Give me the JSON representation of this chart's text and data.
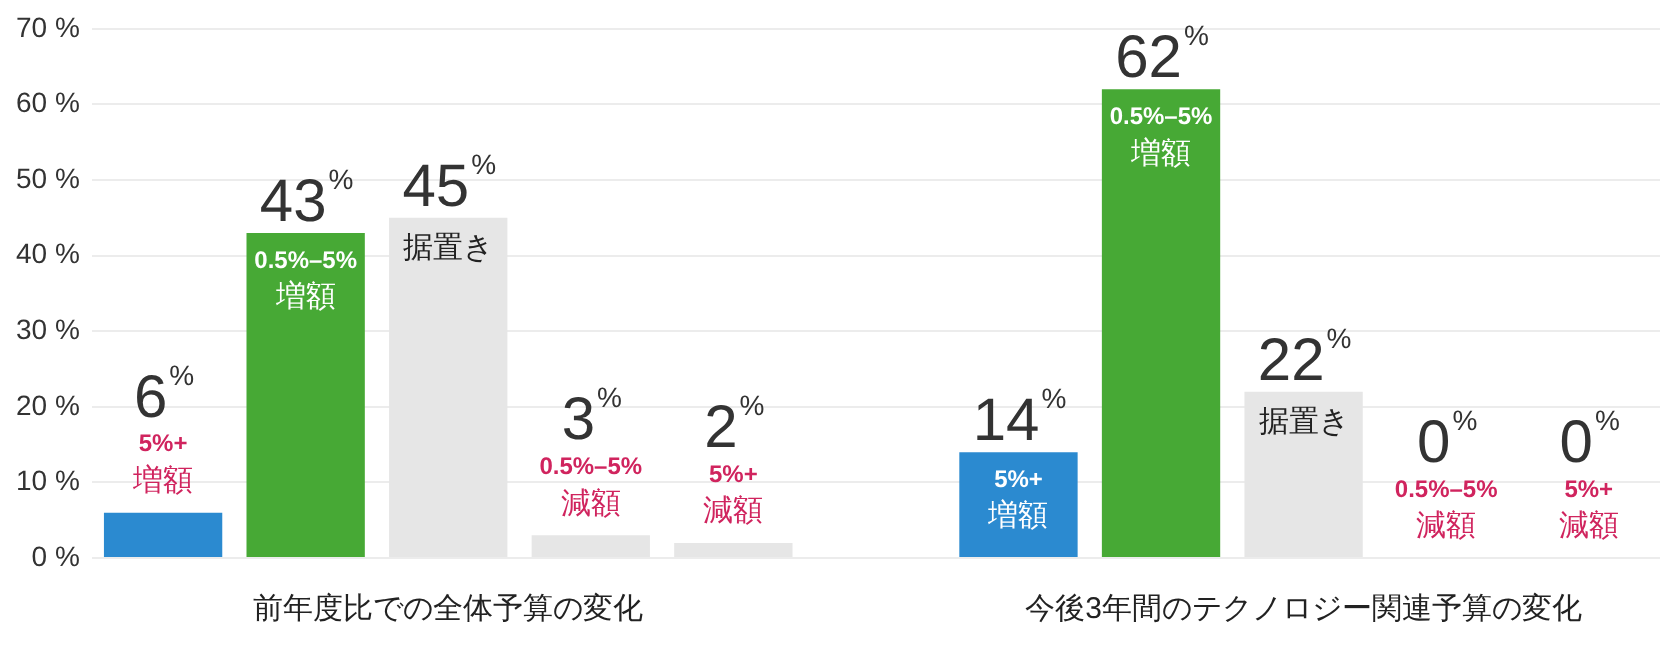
{
  "chart_data": {
    "type": "bar",
    "categories": [
      "5%+\n増額",
      "0.5%–5%\n増額",
      "据置き",
      "0.5%–5%\n減額",
      "5%+\n減額",
      null,
      "5%+\n増額",
      "0.5%–5%\n増額",
      "据置き",
      "0.5%–5%\n減額",
      "5%+\n減額"
    ],
    "values": [
      6,
      43,
      45,
      3,
      2,
      null,
      14,
      62,
      22,
      0,
      0
    ],
    "colors": [
      "#2b8ad0",
      "#47a935",
      "#e6e6e6",
      "#e6e6e6",
      "#e6e6e6",
      null,
      "#2b8ad0",
      "#47a935",
      "#e6e6e6",
      "#e6e6e6",
      "#e6e6e6"
    ],
    "value_labels": [
      "6%",
      "43%",
      "45%",
      "3%",
      "2%",
      null,
      "14%",
      "62%",
      "22%",
      "0%",
      "0%"
    ],
    "ylim": [
      0,
      70
    ],
    "yticks": [
      {
        "value": 0,
        "label": "0 %"
      },
      {
        "value": 10,
        "label": "10 %"
      },
      {
        "value": 20,
        "label": "20 %"
      },
      {
        "value": 30,
        "label": "30 %"
      },
      {
        "value": 40,
        "label": "40 %"
      },
      {
        "value": 50,
        "label": "50 %"
      },
      {
        "value": 60,
        "label": "60 %"
      },
      {
        "value": 70,
        "label": "70 %"
      }
    ],
    "grid": "y",
    "annotations": [
      "前年度比での全体予算の変化",
      "今後3年間のテクノロジー関連予算の変化"
    ]
  }
}
